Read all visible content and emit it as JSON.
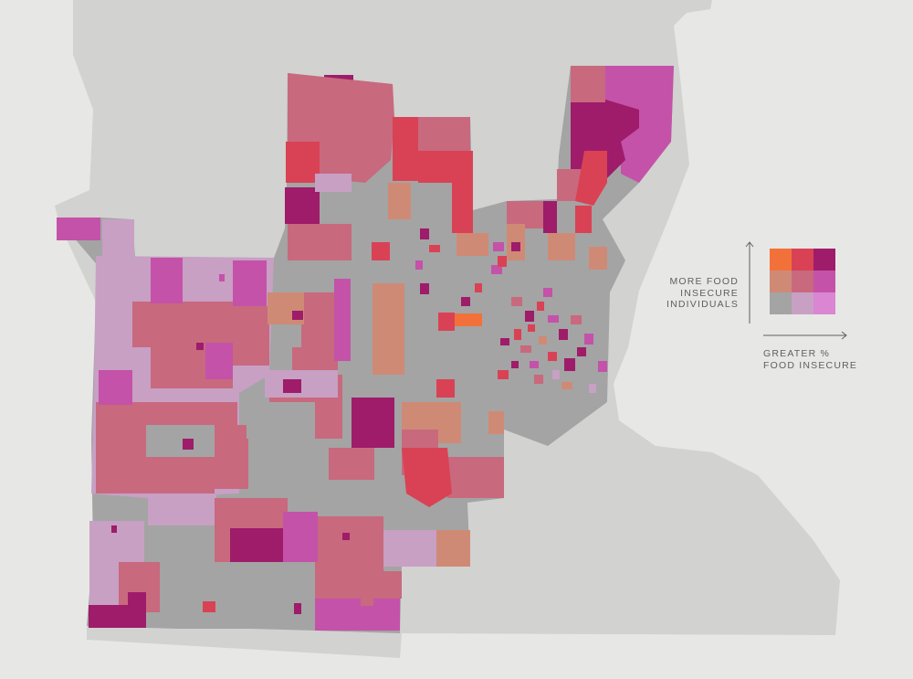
{
  "legend": {
    "y_label_line1": "MORE FOOD",
    "y_label_line2": "INSECURE",
    "y_label_line3": "INDIVIDUALS",
    "x_label_line1": "GREATER %",
    "x_label_line2": "FOOD INSECURE",
    "colors": [
      [
        "#f2713a",
        "#d94255",
        "#9e1c6a"
      ],
      [
        "#cf8a76",
        "#c8697e",
        "#c452a9"
      ],
      [
        "#a4a4a4",
        "#c7a0c4",
        "#da86d2"
      ]
    ]
  },
  "colors": {
    "background": "#e7e7e5",
    "basemap": "#d2d2d0",
    "gray_tract": "#a4a4a4"
  }
}
